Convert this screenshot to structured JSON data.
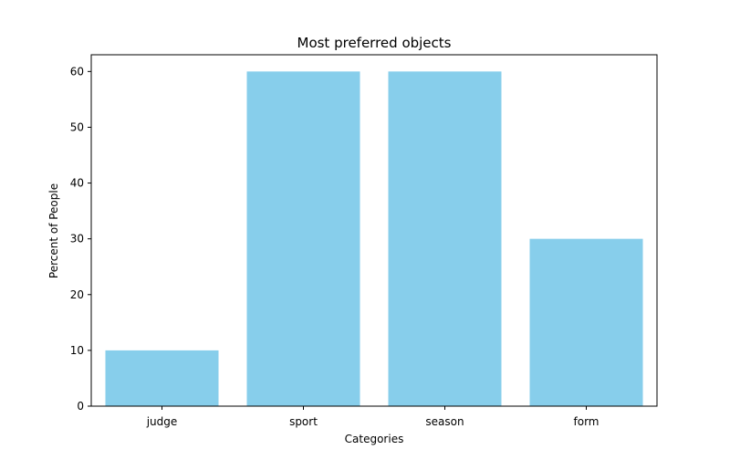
{
  "chart_data": {
    "type": "bar",
    "title": "Most preferred objects",
    "xlabel": "Categories",
    "ylabel": "Percent of People",
    "categories": [
      "judge",
      "sport",
      "season",
      "form"
    ],
    "values": [
      10,
      60,
      60,
      30
    ],
    "ylim": [
      0,
      63
    ],
    "yticks": [
      0,
      10,
      20,
      30,
      40,
      50,
      60
    ],
    "grid": false,
    "legend": "none",
    "bar_color": "#87ceeb",
    "axis_color": "#000000"
  }
}
